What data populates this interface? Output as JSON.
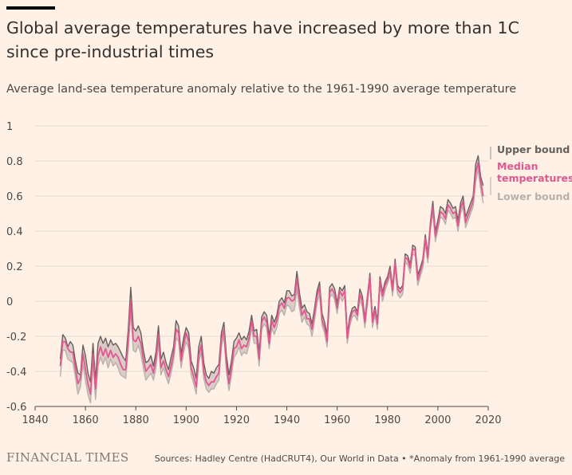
{
  "title": "Global average temperatures have increased by more than 1C since pre-industrial times",
  "subtitle": "Average land-sea temperature anomaly relative to the 1961-1990 average temperature",
  "footer": {
    "logo": "FINANCIAL TIMES",
    "source": "Sources: Hadley Centre (HadCRUT4), Our World in Data • *Anomaly from 1961-1990 average"
  },
  "colors": {
    "background": "#FFF1E5",
    "upper": "#66605C",
    "median": "#E0588F",
    "lower": "#B7B0AA",
    "band": "#DCCBC6"
  },
  "chart_data": {
    "type": "line",
    "title": "Global average temperatures have increased by more than 1C since pre-industrial times",
    "subtitle": "Average land-sea temperature anomaly relative to the 1961-1990 average temperature",
    "xlabel": "",
    "ylabel": "",
    "xlim": [
      1840,
      2020
    ],
    "ylim": [
      -0.6,
      1
    ],
    "x_ticks": [
      "1840",
      "1860",
      "1880",
      "1900",
      "1920",
      "1940",
      "1960",
      "1980",
      "2000",
      "2020"
    ],
    "y_ticks": [
      "-0.6",
      "-0.4",
      "-0.2",
      "0",
      "0.2",
      "0.4",
      "0.6",
      "0.8",
      "1"
    ],
    "grid": "horizontal",
    "legend_position": "right",
    "x": [
      1850,
      1851,
      1852,
      1853,
      1854,
      1855,
      1856,
      1857,
      1858,
      1859,
      1860,
      1861,
      1862,
      1863,
      1864,
      1865,
      1866,
      1867,
      1868,
      1869,
      1870,
      1871,
      1872,
      1873,
      1874,
      1875,
      1876,
      1877,
      1878,
      1879,
      1880,
      1881,
      1882,
      1883,
      1884,
      1885,
      1886,
      1887,
      1888,
      1889,
      1890,
      1891,
      1892,
      1893,
      1894,
      1895,
      1896,
      1897,
      1898,
      1899,
      1900,
      1901,
      1902,
      1903,
      1904,
      1905,
      1906,
      1907,
      1908,
      1909,
      1910,
      1911,
      1912,
      1913,
      1914,
      1915,
      1916,
      1917,
      1918,
      1919,
      1920,
      1921,
      1922,
      1923,
      1924,
      1925,
      1926,
      1927,
      1928,
      1929,
      1930,
      1931,
      1932,
      1933,
      1934,
      1935,
      1936,
      1937,
      1938,
      1939,
      1940,
      1941,
      1942,
      1943,
      1944,
      1945,
      1946,
      1947,
      1948,
      1949,
      1950,
      1951,
      1952,
      1953,
      1954,
      1955,
      1956,
      1957,
      1958,
      1959,
      1960,
      1961,
      1962,
      1963,
      1964,
      1965,
      1966,
      1967,
      1968,
      1969,
      1970,
      1971,
      1972,
      1973,
      1974,
      1975,
      1976,
      1977,
      1978,
      1979,
      1980,
      1981,
      1982,
      1983,
      1984,
      1985,
      1986,
      1987,
      1988,
      1989,
      1990,
      1991,
      1992,
      1993,
      1994,
      1995,
      1996,
      1997,
      1998,
      1999,
      2000,
      2001,
      2002,
      2003,
      2004,
      2005,
      2006,
      2007,
      2008,
      2009,
      2010,
      2011,
      2012,
      2013,
      2014,
      2015,
      2016,
      2017,
      2018
    ],
    "series": [
      {
        "name": "Upper bound",
        "values": [
          -0.33,
          -0.19,
          -0.21,
          -0.26,
          -0.23,
          -0.25,
          -0.34,
          -0.41,
          -0.42,
          -0.25,
          -0.31,
          -0.41,
          -0.46,
          -0.24,
          -0.45,
          -0.24,
          -0.2,
          -0.24,
          -0.21,
          -0.26,
          -0.22,
          -0.25,
          -0.24,
          -0.26,
          -0.29,
          -0.32,
          -0.34,
          -0.16,
          0.08,
          -0.15,
          -0.17,
          -0.14,
          -0.18,
          -0.28,
          -0.35,
          -0.34,
          -0.31,
          -0.37,
          -0.29,
          -0.14,
          -0.33,
          -0.29,
          -0.35,
          -0.39,
          -0.32,
          -0.26,
          -0.11,
          -0.14,
          -0.3,
          -0.21,
          -0.15,
          -0.18,
          -0.34,
          -0.38,
          -0.44,
          -0.26,
          -0.2,
          -0.35,
          -0.42,
          -0.44,
          -0.4,
          -0.41,
          -0.38,
          -0.36,
          -0.18,
          -0.12,
          -0.31,
          -0.42,
          -0.34,
          -0.23,
          -0.21,
          -0.18,
          -0.22,
          -0.2,
          -0.22,
          -0.17,
          -0.08,
          -0.17,
          -0.16,
          -0.29,
          -0.09,
          -0.06,
          -0.08,
          -0.2,
          -0.08,
          -0.12,
          -0.08,
          0.0,
          0.02,
          -0.01,
          0.06,
          0.06,
          0.03,
          0.04,
          0.17,
          0.05,
          -0.04,
          -0.02,
          -0.06,
          -0.07,
          -0.13,
          -0.04,
          0.06,
          0.11,
          -0.07,
          -0.12,
          -0.19,
          0.08,
          0.1,
          0.07,
          -0.01,
          0.08,
          0.06,
          0.09,
          -0.18,
          -0.09,
          -0.04,
          -0.03,
          -0.06,
          0.07,
          0.03,
          -0.1,
          0.03,
          0.16,
          -0.1,
          -0.03,
          -0.11,
          0.14,
          0.05,
          0.11,
          0.14,
          0.2,
          0.08,
          0.24,
          0.09,
          0.07,
          0.09,
          0.27,
          0.26,
          0.21,
          0.32,
          0.31,
          0.15,
          0.19,
          0.24,
          0.38,
          0.27,
          0.45,
          0.57,
          0.4,
          0.46,
          0.54,
          0.53,
          0.5,
          0.58,
          0.56,
          0.53,
          0.54,
          0.46,
          0.56,
          0.6,
          0.48,
          0.52,
          0.56,
          0.6,
          0.78,
          0.83,
          0.71,
          0.66
        ]
      },
      {
        "name": "Median temperatures",
        "values": [
          -0.37,
          -0.23,
          -0.23,
          -0.27,
          -0.29,
          -0.29,
          -0.38,
          -0.47,
          -0.44,
          -0.3,
          -0.39,
          -0.47,
          -0.53,
          -0.3,
          -0.5,
          -0.31,
          -0.26,
          -0.31,
          -0.27,
          -0.32,
          -0.28,
          -0.32,
          -0.3,
          -0.32,
          -0.36,
          -0.39,
          -0.39,
          -0.22,
          0.0,
          -0.22,
          -0.23,
          -0.2,
          -0.24,
          -0.33,
          -0.4,
          -0.38,
          -0.36,
          -0.41,
          -0.33,
          -0.19,
          -0.38,
          -0.34,
          -0.39,
          -0.43,
          -0.37,
          -0.3,
          -0.16,
          -0.18,
          -0.34,
          -0.25,
          -0.18,
          -0.23,
          -0.38,
          -0.43,
          -0.49,
          -0.31,
          -0.25,
          -0.4,
          -0.46,
          -0.48,
          -0.46,
          -0.46,
          -0.43,
          -0.41,
          -0.22,
          -0.16,
          -0.36,
          -0.47,
          -0.38,
          -0.27,
          -0.26,
          -0.22,
          -0.27,
          -0.25,
          -0.26,
          -0.21,
          -0.11,
          -0.2,
          -0.2,
          -0.33,
          -0.12,
          -0.09,
          -0.12,
          -0.24,
          -0.11,
          -0.15,
          -0.11,
          -0.03,
          -0.01,
          -0.04,
          0.02,
          0.02,
          0.0,
          0.01,
          0.13,
          0.01,
          -0.08,
          -0.05,
          -0.1,
          -0.1,
          -0.16,
          -0.07,
          0.03,
          0.08,
          -0.11,
          -0.15,
          -0.23,
          0.05,
          0.07,
          0.04,
          -0.04,
          0.06,
          0.03,
          0.06,
          -0.21,
          -0.11,
          -0.06,
          -0.05,
          -0.08,
          0.04,
          0.0,
          -0.12,
          0.01,
          0.14,
          -0.12,
          -0.05,
          -0.13,
          0.12,
          0.03,
          0.09,
          0.12,
          0.18,
          0.06,
          0.22,
          0.07,
          0.05,
          0.07,
          0.25,
          0.24,
          0.19,
          0.3,
          0.29,
          0.12,
          0.17,
          0.22,
          0.36,
          0.25,
          0.43,
          0.54,
          0.37,
          0.43,
          0.51,
          0.5,
          0.47,
          0.55,
          0.53,
          0.5,
          0.51,
          0.43,
          0.53,
          0.57,
          0.45,
          0.49,
          0.53,
          0.57,
          0.73,
          0.79,
          0.68,
          0.6
        ]
      },
      {
        "name": "Lower bound",
        "values": [
          -0.43,
          -0.28,
          -0.28,
          -0.33,
          -0.34,
          -0.35,
          -0.43,
          -0.53,
          -0.49,
          -0.36,
          -0.45,
          -0.53,
          -0.58,
          -0.35,
          -0.56,
          -0.37,
          -0.32,
          -0.36,
          -0.32,
          -0.38,
          -0.33,
          -0.37,
          -0.35,
          -0.38,
          -0.42,
          -0.43,
          -0.44,
          -0.27,
          -0.06,
          -0.28,
          -0.29,
          -0.25,
          -0.3,
          -0.38,
          -0.45,
          -0.43,
          -0.41,
          -0.45,
          -0.38,
          -0.24,
          -0.42,
          -0.38,
          -0.43,
          -0.47,
          -0.41,
          -0.34,
          -0.21,
          -0.23,
          -0.38,
          -0.29,
          -0.23,
          -0.27,
          -0.42,
          -0.47,
          -0.53,
          -0.35,
          -0.29,
          -0.44,
          -0.5,
          -0.52,
          -0.5,
          -0.5,
          -0.47,
          -0.45,
          -0.26,
          -0.2,
          -0.4,
          -0.51,
          -0.42,
          -0.32,
          -0.3,
          -0.26,
          -0.31,
          -0.29,
          -0.3,
          -0.25,
          -0.15,
          -0.24,
          -0.24,
          -0.37,
          -0.16,
          -0.13,
          -0.15,
          -0.27,
          -0.15,
          -0.19,
          -0.15,
          -0.07,
          -0.05,
          -0.08,
          -0.02,
          -0.03,
          -0.06,
          -0.05,
          0.07,
          -0.04,
          -0.12,
          -0.09,
          -0.13,
          -0.14,
          -0.2,
          -0.11,
          -0.01,
          0.04,
          -0.14,
          -0.18,
          -0.26,
          0.02,
          0.04,
          0.01,
          -0.07,
          0.03,
          0.0,
          0.03,
          -0.24,
          -0.14,
          -0.09,
          -0.08,
          -0.11,
          0.01,
          -0.03,
          -0.15,
          -0.02,
          0.11,
          -0.15,
          -0.08,
          -0.16,
          0.09,
          0.0,
          0.06,
          0.1,
          0.15,
          0.03,
          0.19,
          0.04,
          0.02,
          0.04,
          0.22,
          0.21,
          0.16,
          0.27,
          0.26,
          0.09,
          0.14,
          0.19,
          0.33,
          0.22,
          0.4,
          0.51,
          0.34,
          0.41,
          0.48,
          0.47,
          0.44,
          0.52,
          0.5,
          0.47,
          0.48,
          0.4,
          0.5,
          0.54,
          0.42,
          0.46,
          0.5,
          0.54,
          0.68,
          0.75,
          0.64,
          0.56
        ]
      }
    ],
    "legend": [
      "Upper bound",
      "Median temperatures",
      "Lower bound"
    ]
  }
}
